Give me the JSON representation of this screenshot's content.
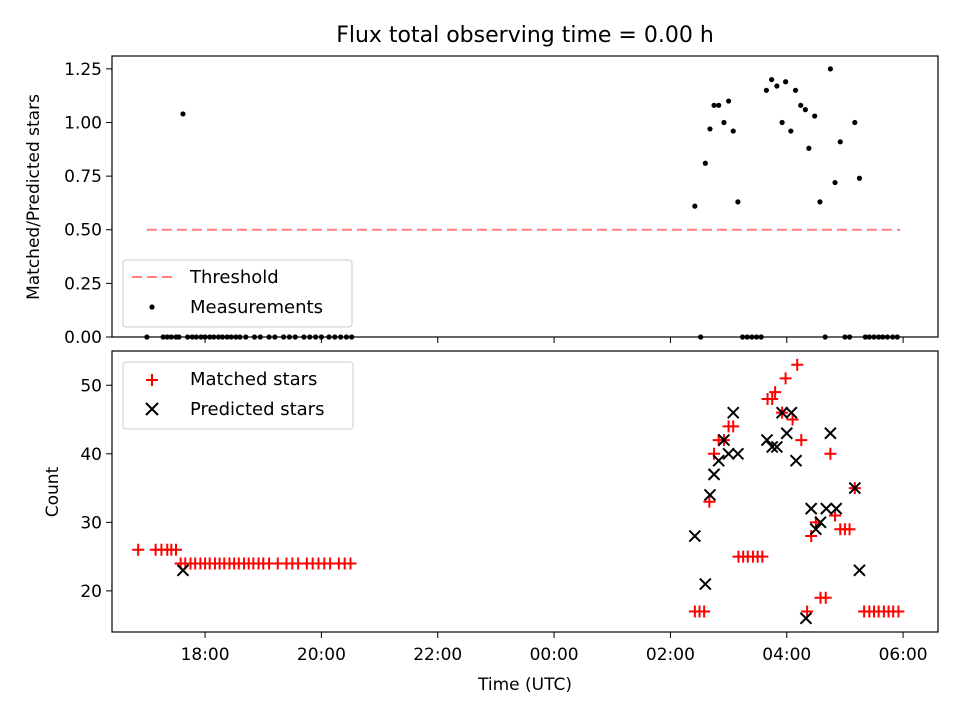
{
  "chart_data": [
    {
      "type": "scatter",
      "title": "Flux total observing time = 0.00 h",
      "xlabel": "",
      "ylabel": "Matched/Predicted stars",
      "xlim": [
        -7.6,
        6.6
      ],
      "ylim": [
        0,
        1.31
      ],
      "yticks": [
        0,
        0.25,
        0.5,
        0.75,
        1.0,
        1.25
      ],
      "ytick_labels": [
        "0.00",
        "0.25",
        "0.50",
        "0.75",
        "1.00",
        "1.25"
      ],
      "xticks": [
        -6,
        -4,
        -2,
        0,
        2,
        4,
        6
      ],
      "legend_position": "lower-left",
      "threshold": {
        "name": "Threshold",
        "value": 0.5,
        "x_range": [
          -7.0,
          5.95
        ],
        "color": "#ff7f7f"
      },
      "measurements": {
        "name": "Measurements",
        "color": "#000000",
        "points": [
          [
            -7.0,
            0
          ],
          [
            -6.72,
            0
          ],
          [
            -6.65,
            0
          ],
          [
            -6.58,
            0
          ],
          [
            -6.5,
            0
          ],
          [
            -6.45,
            0
          ],
          [
            -6.38,
            1.04
          ],
          [
            -6.3,
            0
          ],
          [
            -6.22,
            0
          ],
          [
            -6.15,
            0
          ],
          [
            -6.07,
            0
          ],
          [
            -6.0,
            0
          ],
          [
            -5.92,
            0
          ],
          [
            -5.85,
            0
          ],
          [
            -5.77,
            0
          ],
          [
            -5.7,
            0
          ],
          [
            -5.62,
            0
          ],
          [
            -5.55,
            0
          ],
          [
            -5.47,
            0
          ],
          [
            -5.4,
            0
          ],
          [
            -5.3,
            0
          ],
          [
            -5.15,
            0
          ],
          [
            -5.05,
            0
          ],
          [
            -4.9,
            0
          ],
          [
            -4.8,
            0
          ],
          [
            -4.65,
            0
          ],
          [
            -4.55,
            0
          ],
          [
            -4.45,
            0
          ],
          [
            -4.3,
            0
          ],
          [
            -4.2,
            0
          ],
          [
            -4.1,
            0
          ],
          [
            -4.0,
            0
          ],
          [
            -3.87,
            0
          ],
          [
            -3.77,
            0
          ],
          [
            -3.67,
            0
          ],
          [
            -3.57,
            0
          ],
          [
            -3.48,
            0
          ],
          [
            2.42,
            0.61
          ],
          [
            2.52,
            0
          ],
          [
            2.6,
            0.81
          ],
          [
            2.68,
            0.97
          ],
          [
            2.75,
            1.08
          ],
          [
            2.83,
            1.08
          ],
          [
            2.92,
            1.0
          ],
          [
            3.0,
            1.1
          ],
          [
            3.08,
            0.96
          ],
          [
            3.16,
            0.63
          ],
          [
            3.24,
            0
          ],
          [
            3.32,
            0
          ],
          [
            3.4,
            0
          ],
          [
            3.48,
            0
          ],
          [
            3.56,
            0
          ],
          [
            3.65,
            1.15
          ],
          [
            3.74,
            1.2
          ],
          [
            3.83,
            1.17
          ],
          [
            3.92,
            1.0
          ],
          [
            3.98,
            1.19
          ],
          [
            4.07,
            0.96
          ],
          [
            4.15,
            1.15
          ],
          [
            4.24,
            1.08
          ],
          [
            4.32,
            1.06
          ],
          [
            4.38,
            0.88
          ],
          [
            4.48,
            1.03
          ],
          [
            4.57,
            0.63
          ],
          [
            4.66,
            0
          ],
          [
            4.75,
            1.25
          ],
          [
            4.83,
            0.72
          ],
          [
            4.92,
            0.91
          ],
          [
            5.0,
            0
          ],
          [
            5.08,
            0
          ],
          [
            5.17,
            1.0
          ],
          [
            5.25,
            0.74
          ],
          [
            5.35,
            0
          ],
          [
            5.42,
            0
          ],
          [
            5.5,
            0
          ],
          [
            5.58,
            0
          ],
          [
            5.65,
            0
          ],
          [
            5.73,
            0
          ],
          [
            5.82,
            0
          ],
          [
            5.9,
            0
          ]
        ]
      }
    },
    {
      "type": "scatter",
      "title": "",
      "xlabel": "Time (UTC)",
      "ylabel": "Count",
      "xlim": [
        -7.6,
        6.6
      ],
      "ylim": [
        14,
        55
      ],
      "yticks": [
        20,
        30,
        40,
        50
      ],
      "ytick_labels": [
        "20",
        "30",
        "40",
        "50"
      ],
      "xticks": [
        -6,
        -4,
        -2,
        0,
        2,
        4,
        6
      ],
      "xtick_labels": [
        "18:00",
        "20:00",
        "22:00",
        "00:00",
        "02:00",
        "04:00",
        "06:00"
      ],
      "legend_position": "top-left",
      "series": [
        {
          "name": "Matched stars",
          "marker": "plus",
          "color": "#ff0000",
          "points": [
            [
              -7.15,
              26
            ],
            [
              -6.85,
              26
            ],
            [
              -6.75,
              26
            ],
            [
              -6.65,
              26
            ],
            [
              -6.58,
              26
            ],
            [
              -6.5,
              26
            ],
            [
              -6.42,
              24
            ],
            [
              -6.34,
              24
            ],
            [
              -6.25,
              24
            ],
            [
              -6.17,
              24
            ],
            [
              -6.08,
              24
            ],
            [
              -6.0,
              24
            ],
            [
              -5.92,
              24
            ],
            [
              -5.83,
              24
            ],
            [
              -5.75,
              24
            ],
            [
              -5.67,
              24
            ],
            [
              -5.58,
              24
            ],
            [
              -5.5,
              24
            ],
            [
              -5.42,
              24
            ],
            [
              -5.33,
              24
            ],
            [
              -5.25,
              24
            ],
            [
              -5.17,
              24
            ],
            [
              -5.08,
              24
            ],
            [
              -5.0,
              24
            ],
            [
              -4.9,
              24
            ],
            [
              -4.75,
              24
            ],
            [
              -4.6,
              24
            ],
            [
              -4.5,
              24
            ],
            [
              -4.4,
              24
            ],
            [
              -4.25,
              24
            ],
            [
              -4.15,
              24
            ],
            [
              -4.05,
              24
            ],
            [
              -3.95,
              24
            ],
            [
              -3.85,
              24
            ],
            [
              -3.7,
              24
            ],
            [
              -3.6,
              24
            ],
            [
              -3.5,
              24
            ],
            [
              2.42,
              17
            ],
            [
              2.5,
              17
            ],
            [
              2.58,
              17
            ],
            [
              2.67,
              33
            ],
            [
              2.75,
              40
            ],
            [
              2.83,
              42
            ],
            [
              2.92,
              42
            ],
            [
              3.0,
              44
            ],
            [
              3.08,
              44
            ],
            [
              3.17,
              25
            ],
            [
              3.25,
              25
            ],
            [
              3.33,
              25
            ],
            [
              3.42,
              25
            ],
            [
              3.5,
              25
            ],
            [
              3.58,
              25
            ],
            [
              3.67,
              48
            ],
            [
              3.75,
              48
            ],
            [
              3.8,
              49
            ],
            [
              3.92,
              46
            ],
            [
              3.98,
              51
            ],
            [
              4.1,
              45
            ],
            [
              4.18,
              53
            ],
            [
              4.25,
              42
            ],
            [
              4.35,
              17
            ],
            [
              4.42,
              28
            ],
            [
              4.5,
              30
            ],
            [
              4.58,
              19
            ],
            [
              4.67,
              19
            ],
            [
              4.75,
              40
            ],
            [
              4.83,
              31
            ],
            [
              4.92,
              29
            ],
            [
              5.0,
              29
            ],
            [
              5.08,
              29
            ],
            [
              5.17,
              35
            ],
            [
              5.33,
              17
            ],
            [
              5.42,
              17
            ],
            [
              5.5,
              17
            ],
            [
              5.58,
              17
            ],
            [
              5.67,
              17
            ],
            [
              5.75,
              17
            ],
            [
              5.83,
              17
            ],
            [
              5.92,
              17
            ]
          ]
        },
        {
          "name": "Predicted stars",
          "marker": "cross",
          "color": "#000000",
          "points": [
            [
              -6.38,
              23
            ],
            [
              2.42,
              28
            ],
            [
              2.6,
              21
            ],
            [
              2.68,
              34
            ],
            [
              2.75,
              37
            ],
            [
              2.83,
              39
            ],
            [
              2.92,
              42
            ],
            [
              3.0,
              40
            ],
            [
              3.08,
              46
            ],
            [
              3.16,
              40
            ],
            [
              3.66,
              42
            ],
            [
              3.75,
              41
            ],
            [
              3.83,
              41
            ],
            [
              3.92,
              46
            ],
            [
              4.0,
              43
            ],
            [
              4.08,
              46
            ],
            [
              4.16,
              39
            ],
            [
              4.33,
              16
            ],
            [
              4.42,
              32
            ],
            [
              4.5,
              29
            ],
            [
              4.58,
              30
            ],
            [
              4.68,
              32
            ],
            [
              4.75,
              43
            ],
            [
              4.85,
              32
            ],
            [
              5.17,
              35
            ],
            [
              5.25,
              23
            ]
          ]
        }
      ]
    }
  ]
}
